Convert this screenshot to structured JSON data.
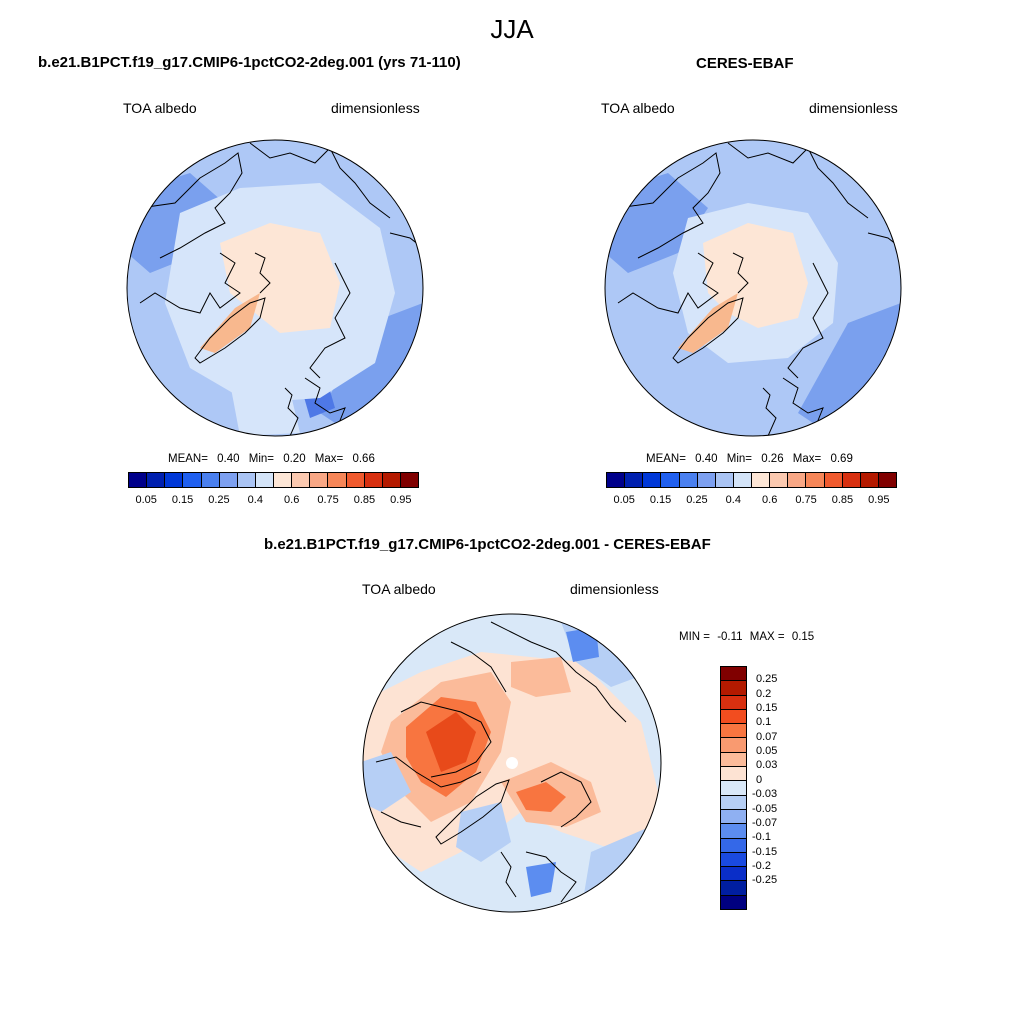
{
  "season_title": "JJA",
  "panels": [
    {
      "id": "model",
      "title": "b.e21.B1PCT.f19_g17.CMIP6-1pctCO2-2deg.001 (yrs 71-110)",
      "left_label": "TOA albedo",
      "right_label": "dimensionless",
      "stats": {
        "mean_label": "MEAN=",
        "mean": "0.40",
        "min_label": "Min=",
        "min": "0.20",
        "max_label": "Max=",
        "max": "0.66"
      }
    },
    {
      "id": "obs",
      "title": "CERES-EBAF",
      "left_label": "TOA albedo",
      "right_label": "dimensionless",
      "stats": {
        "mean_label": "MEAN=",
        "mean": "0.40",
        "min_label": "Min=",
        "min": "0.26",
        "max_label": "Max=",
        "max": "0.69"
      }
    }
  ],
  "diff_panel": {
    "title": "b.e21.B1PCT.f19_g17.CMIP6-1pctCO2-2deg.001 - CERES-EBAF",
    "left_label": "TOA albedo",
    "right_label": "dimensionless",
    "minmax": {
      "min_label": "MIN =",
      "min": "-0.11",
      "max_label": "MAX =",
      "max": "0.15"
    }
  },
  "colorbar_abs": {
    "colors": [
      "#00008b",
      "#0020b0",
      "#0038d8",
      "#2060f0",
      "#4a80f0",
      "#7da0f0",
      "#aac4f4",
      "#d4e4f8",
      "#fde6d6",
      "#fbc9b0",
      "#f8a785",
      "#f68658",
      "#f05a2e",
      "#d83010",
      "#b51a00",
      "#800000"
    ],
    "tick_labels": [
      "0.05",
      "0.15",
      "0.25",
      "0.4",
      "0.6",
      "0.75",
      "0.85",
      "0.95"
    ]
  },
  "colorbar_diff": {
    "colors": [
      "#800000",
      "#b31a00",
      "#d83010",
      "#f24d1f",
      "#f87540",
      "#f99a70",
      "#fbbb9a",
      "#fde3d3",
      "#d9e8f8",
      "#b6cff5",
      "#8fb0f2",
      "#5c8df0",
      "#3468e8",
      "#1a4ae0",
      "#0a2ec8",
      "#001ea0",
      "#000080"
    ],
    "tick_labels": [
      "0.25",
      "0.2",
      "0.15",
      "0.1",
      "0.07",
      "0.05",
      "0.03",
      "0",
      "-0.03",
      "-0.05",
      "-0.07",
      "-0.1",
      "-0.15",
      "-0.2",
      "-0.25"
    ]
  },
  "map_colors": {
    "abs_background": "#aec8f6",
    "abs_light": "#d6e5fa",
    "abs_mid": "#7aa0ee",
    "abs_dark": "#4e78e6",
    "abs_ice": "#fde6d6",
    "abs_greenland": "#f8b88e",
    "diff_neutral": "#d9e8f8",
    "diff_pos1": "#fde3d3",
    "diff_pos2": "#fbbb9a",
    "diff_pos3": "#f87540",
    "diff_pos4": "#e84a1a",
    "diff_neg1": "#b6cff5",
    "diff_neg2": "#5c8df0",
    "coast": "#000000"
  }
}
